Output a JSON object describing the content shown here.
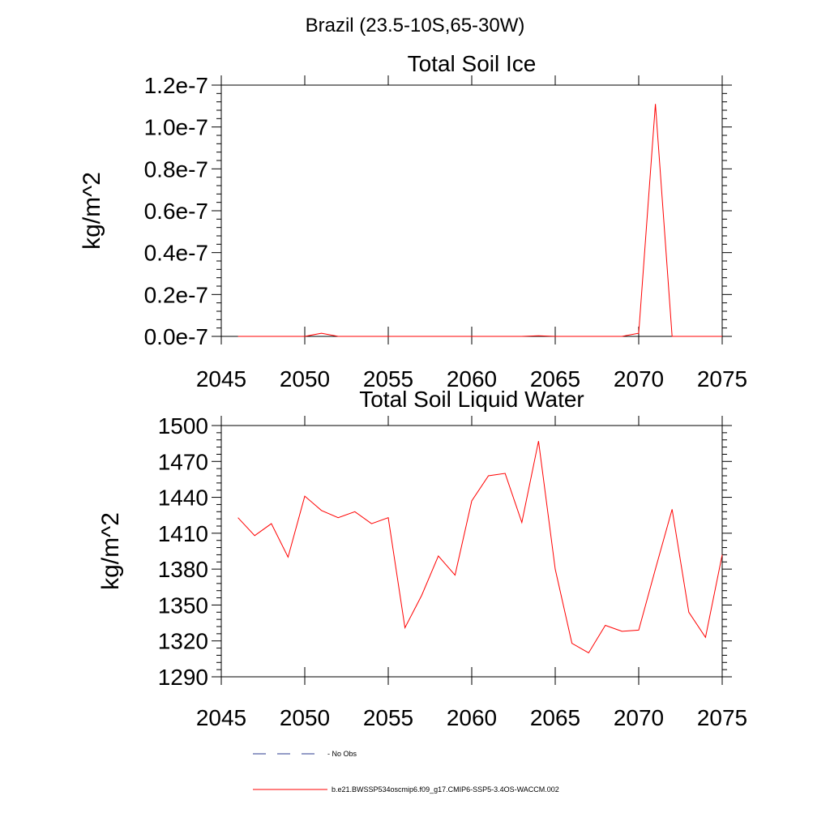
{
  "page_title": "Brazil (23.5-10S,65-30W)",
  "chart_data": [
    {
      "type": "line",
      "title": "Total Soil Ice",
      "xlabel": "",
      "ylabel": "kg/m^2",
      "xlim": [
        2045,
        2075
      ],
      "ylim": [
        0,
        1.2e-07
      ],
      "x_ticks": [
        2045,
        2050,
        2055,
        2060,
        2065,
        2070,
        2075
      ],
      "x_tick_labels": [
        "2045",
        "2050",
        "2055",
        "2060",
        "2065",
        "2070",
        "2075"
      ],
      "y_ticks": [
        0,
        2e-08,
        4e-08,
        6e-08,
        8e-08,
        1e-07,
        1.2e-07
      ],
      "y_tick_labels": [
        "0.0e-7",
        "0.2e-7",
        "0.4e-7",
        "0.6e-7",
        "0.8e-7",
        "1.0e-7",
        "1.2e-7"
      ],
      "series": [
        {
          "name": "b.e21.BWSSP534oscmip6.f09_g17.CMIP6-SSP5-3.4OS-WACCM.002",
          "color": "#ff0000",
          "x": [
            2046,
            2047,
            2048,
            2049,
            2050,
            2051,
            2052,
            2053,
            2054,
            2055,
            2056,
            2057,
            2058,
            2059,
            2060,
            2061,
            2062,
            2063,
            2064,
            2065,
            2066,
            2067,
            2068,
            2069,
            2070,
            2071,
            2072,
            2073,
            2074,
            2075
          ],
          "values": [
            0,
            0,
            0,
            0,
            0,
            1.5e-09,
            0,
            0,
            0,
            0,
            0,
            0,
            0,
            0,
            0,
            0,
            0,
            0,
            3e-10,
            0,
            0,
            0,
            0,
            0,
            1.5e-09,
            1.11e-07,
            0,
            0,
            0,
            0
          ]
        }
      ]
    },
    {
      "type": "line",
      "title": "Total Soil Liquid Water",
      "xlabel": "",
      "ylabel": "kg/m^2",
      "xlim": [
        2045,
        2075
      ],
      "ylim": [
        1290,
        1500
      ],
      "x_ticks": [
        2045,
        2050,
        2055,
        2060,
        2065,
        2070,
        2075
      ],
      "x_tick_labels": [
        "2045",
        "2050",
        "2055",
        "2060",
        "2065",
        "2070",
        "2075"
      ],
      "y_ticks": [
        1290,
        1320,
        1350,
        1380,
        1410,
        1440,
        1470,
        1500
      ],
      "y_tick_labels": [
        "1290",
        "1320",
        "1350",
        "1380",
        "1410",
        "1440",
        "1470",
        "1500"
      ],
      "series": [
        {
          "name": "b.e21.BWSSP534oscmip6.f09_g17.CMIP6-SSP5-3.4OS-WACCM.002",
          "color": "#ff0000",
          "x": [
            2046,
            2047,
            2048,
            2049,
            2050,
            2051,
            2052,
            2053,
            2054,
            2055,
            2056,
            2057,
            2058,
            2059,
            2060,
            2061,
            2062,
            2063,
            2064,
            2065,
            2066,
            2067,
            2068,
            2069,
            2070,
            2071,
            2072,
            2073,
            2074,
            2075
          ],
          "values": [
            1423,
            1408,
            1418,
            1390,
            1441,
            1429,
            1423,
            1428,
            1418,
            1423,
            1331,
            1358,
            1391,
            1375,
            1437,
            1458,
            1460,
            1419,
            1487,
            1380,
            1318,
            1310,
            1333,
            1328,
            1329,
            1380,
            1430,
            1344,
            1323,
            1392
          ]
        }
      ]
    }
  ],
  "legend": {
    "entries": [
      {
        "label": "No Obs",
        "color": "#2a3a8f",
        "style": "dashed"
      },
      {
        "label": "b.e21.BWSSP534oscmip6.f09_g17.CMIP6-SSP5-3.4OS-WACCM.002",
        "color": "#ff0000",
        "style": "solid"
      }
    ]
  }
}
